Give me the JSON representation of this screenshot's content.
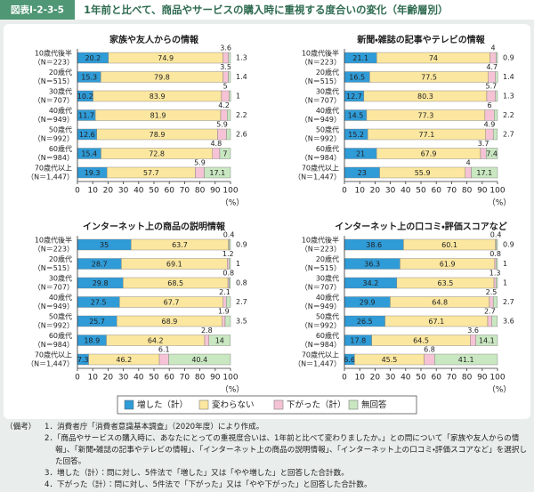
{
  "header": {
    "figure_id": "図表Ⅰ-2-3-5",
    "title": "1年前と比べて、商品やサービスの購入時に重視する度合いの変化（年齢層別）"
  },
  "legend": {
    "entries": [
      {
        "name": "増した（計）",
        "color": "#2f9bd7"
      },
      {
        "name": "変わらない",
        "color": "#fce7a0"
      },
      {
        "name": "下がった（計）",
        "color": "#f5c3d5"
      },
      {
        "name": "無回答",
        "color": "#c9e7c1"
      }
    ]
  },
  "chart_data": [
    {
      "type": "bar",
      "orientation": "horizontal",
      "stacked": true,
      "title": "家族や友人からの情報",
      "categories": [
        "10歳代後半",
        "20歳代",
        "30歳代",
        "40歳代",
        "50歳代",
        "60歳代",
        "70歳代以上"
      ],
      "n_labels": [
        "（N＝223）",
        "（N＝515）",
        "（N＝707）",
        "（N＝949）",
        "（N＝992）",
        "（N＝984）",
        "（N＝1,447）"
      ],
      "series": [
        {
          "values": [
            20.2,
            15.3,
            10.2,
            11.7,
            12.6,
            15.4,
            19.3
          ]
        },
        {
          "values": [
            74.9,
            79.8,
            83.9,
            81.9,
            78.9,
            72.8,
            57.7
          ]
        },
        {
          "values": [
            3.6,
            3.5,
            5.0,
            4.2,
            5.9,
            4.8,
            5.9
          ]
        },
        {
          "values": [
            1.3,
            1.4,
            1.0,
            2.2,
            2.6,
            7.0,
            17.1
          ]
        }
      ],
      "xlim": [
        0,
        100
      ],
      "xticks": [
        0,
        10,
        20,
        30,
        40,
        50,
        60,
        70,
        80,
        90,
        100
      ],
      "xlabel": "（%）"
    },
    {
      "type": "bar",
      "orientation": "horizontal",
      "stacked": true,
      "title": "新聞・雑誌の記事やテレビの情報",
      "categories": [
        "10歳代後半",
        "20歳代",
        "30歳代",
        "40歳代",
        "50歳代",
        "60歳代",
        "70歳代以上"
      ],
      "n_labels": [
        "（N＝223）",
        "（N＝515）",
        "（N＝707）",
        "（N＝949）",
        "（N＝992）",
        "（N＝984）",
        "（N＝1,447）"
      ],
      "series": [
        {
          "values": [
            21.1,
            16.5,
            12.7,
            14.5,
            15.2,
            21.0,
            23.0
          ]
        },
        {
          "values": [
            74.0,
            77.5,
            80.3,
            77.3,
            77.1,
            67.9,
            55.9
          ]
        },
        {
          "values": [
            4.0,
            4.7,
            5.7,
            6.0,
            4.9,
            3.7,
            4.0
          ]
        },
        {
          "values": [
            0.9,
            1.4,
            1.3,
            2.2,
            2.7,
            7.4,
            17.1
          ]
        }
      ],
      "xlim": [
        0,
        100
      ],
      "xticks": [
        0,
        10,
        20,
        30,
        40,
        50,
        60,
        70,
        80,
        90,
        100
      ],
      "xlabel": "（%）"
    },
    {
      "type": "bar",
      "orientation": "horizontal",
      "stacked": true,
      "title": "インターネット上の商品の説明情報",
      "categories": [
        "10歳代後半",
        "20歳代",
        "30歳代",
        "40歳代",
        "50歳代",
        "60歳代",
        "70歳代以上"
      ],
      "n_labels": [
        "（N＝223）",
        "（N＝515）",
        "（N＝707）",
        "（N＝949）",
        "（N＝992）",
        "（N＝984）",
        "（N＝1,447）"
      ],
      "series": [
        {
          "values": [
            35.0,
            28.7,
            29.8,
            27.5,
            25.7,
            18.9,
            7.3
          ]
        },
        {
          "values": [
            63.7,
            69.1,
            68.5,
            67.7,
            68.9,
            64.2,
            46.2
          ]
        },
        {
          "values": [
            0.4,
            1.2,
            0.8,
            2.1,
            1.9,
            2.8,
            6.1
          ]
        },
        {
          "values": [
            0.9,
            1.0,
            0.8,
            2.7,
            3.5,
            14.0,
            40.4
          ]
        }
      ],
      "xlim": [
        0,
        100
      ],
      "xticks": [
        0,
        10,
        20,
        30,
        40,
        50,
        60,
        70,
        80,
        90,
        100
      ],
      "xlabel": "（%）"
    },
    {
      "type": "bar",
      "orientation": "horizontal",
      "stacked": true,
      "title": "インターネット上の口コミ・評価スコアなど",
      "categories": [
        "10歳代後半",
        "20歳代",
        "30歳代",
        "40歳代",
        "50歳代",
        "60歳代",
        "70歳代以上"
      ],
      "n_labels": [
        "（N＝223）",
        "（N＝515）",
        "（N＝707）",
        "（N＝949）",
        "（N＝992）",
        "（N＝984）",
        "（N＝1,447）"
      ],
      "series": [
        {
          "values": [
            38.6,
            36.3,
            34.2,
            29.9,
            26.5,
            17.8,
            6.6
          ]
        },
        {
          "values": [
            60.1,
            61.9,
            63.5,
            64.8,
            67.1,
            64.5,
            45.5
          ]
        },
        {
          "values": [
            0.4,
            0.8,
            1.3,
            2.5,
            2.7,
            3.6,
            6.8
          ]
        },
        {
          "values": [
            0.9,
            1.0,
            1.0,
            2.7,
            3.6,
            14.1,
            41.1
          ]
        }
      ],
      "xlim": [
        0,
        100
      ],
      "xticks": [
        0,
        10,
        20,
        30,
        40,
        50,
        60,
        70,
        80,
        90,
        100
      ],
      "xlabel": "（%）"
    }
  ],
  "notes": {
    "label": "（備考）",
    "items": [
      "1．消費者庁「消費者意識基本調査」（2020年度）により作成。",
      "2．「商品やサービスの購入時に、あなたにとっての重視度合いは、1年前と比べて変わりましたか。」との問について「家族や友人からの情報」、「新聞・雑誌の記事やテレビの情報」、「インターネット上の商品の説明情報」、「インターネット上の口コミ・評価スコアなど」を選択した回答。",
      "3．増した（計）：問に対し、5件法で「増した」又は「やや増した」と回答した合計数。",
      "4．下がった（計）：問に対し、5件法で「下がった」又は「やや下がった」と回答した合計数。"
    ]
  }
}
